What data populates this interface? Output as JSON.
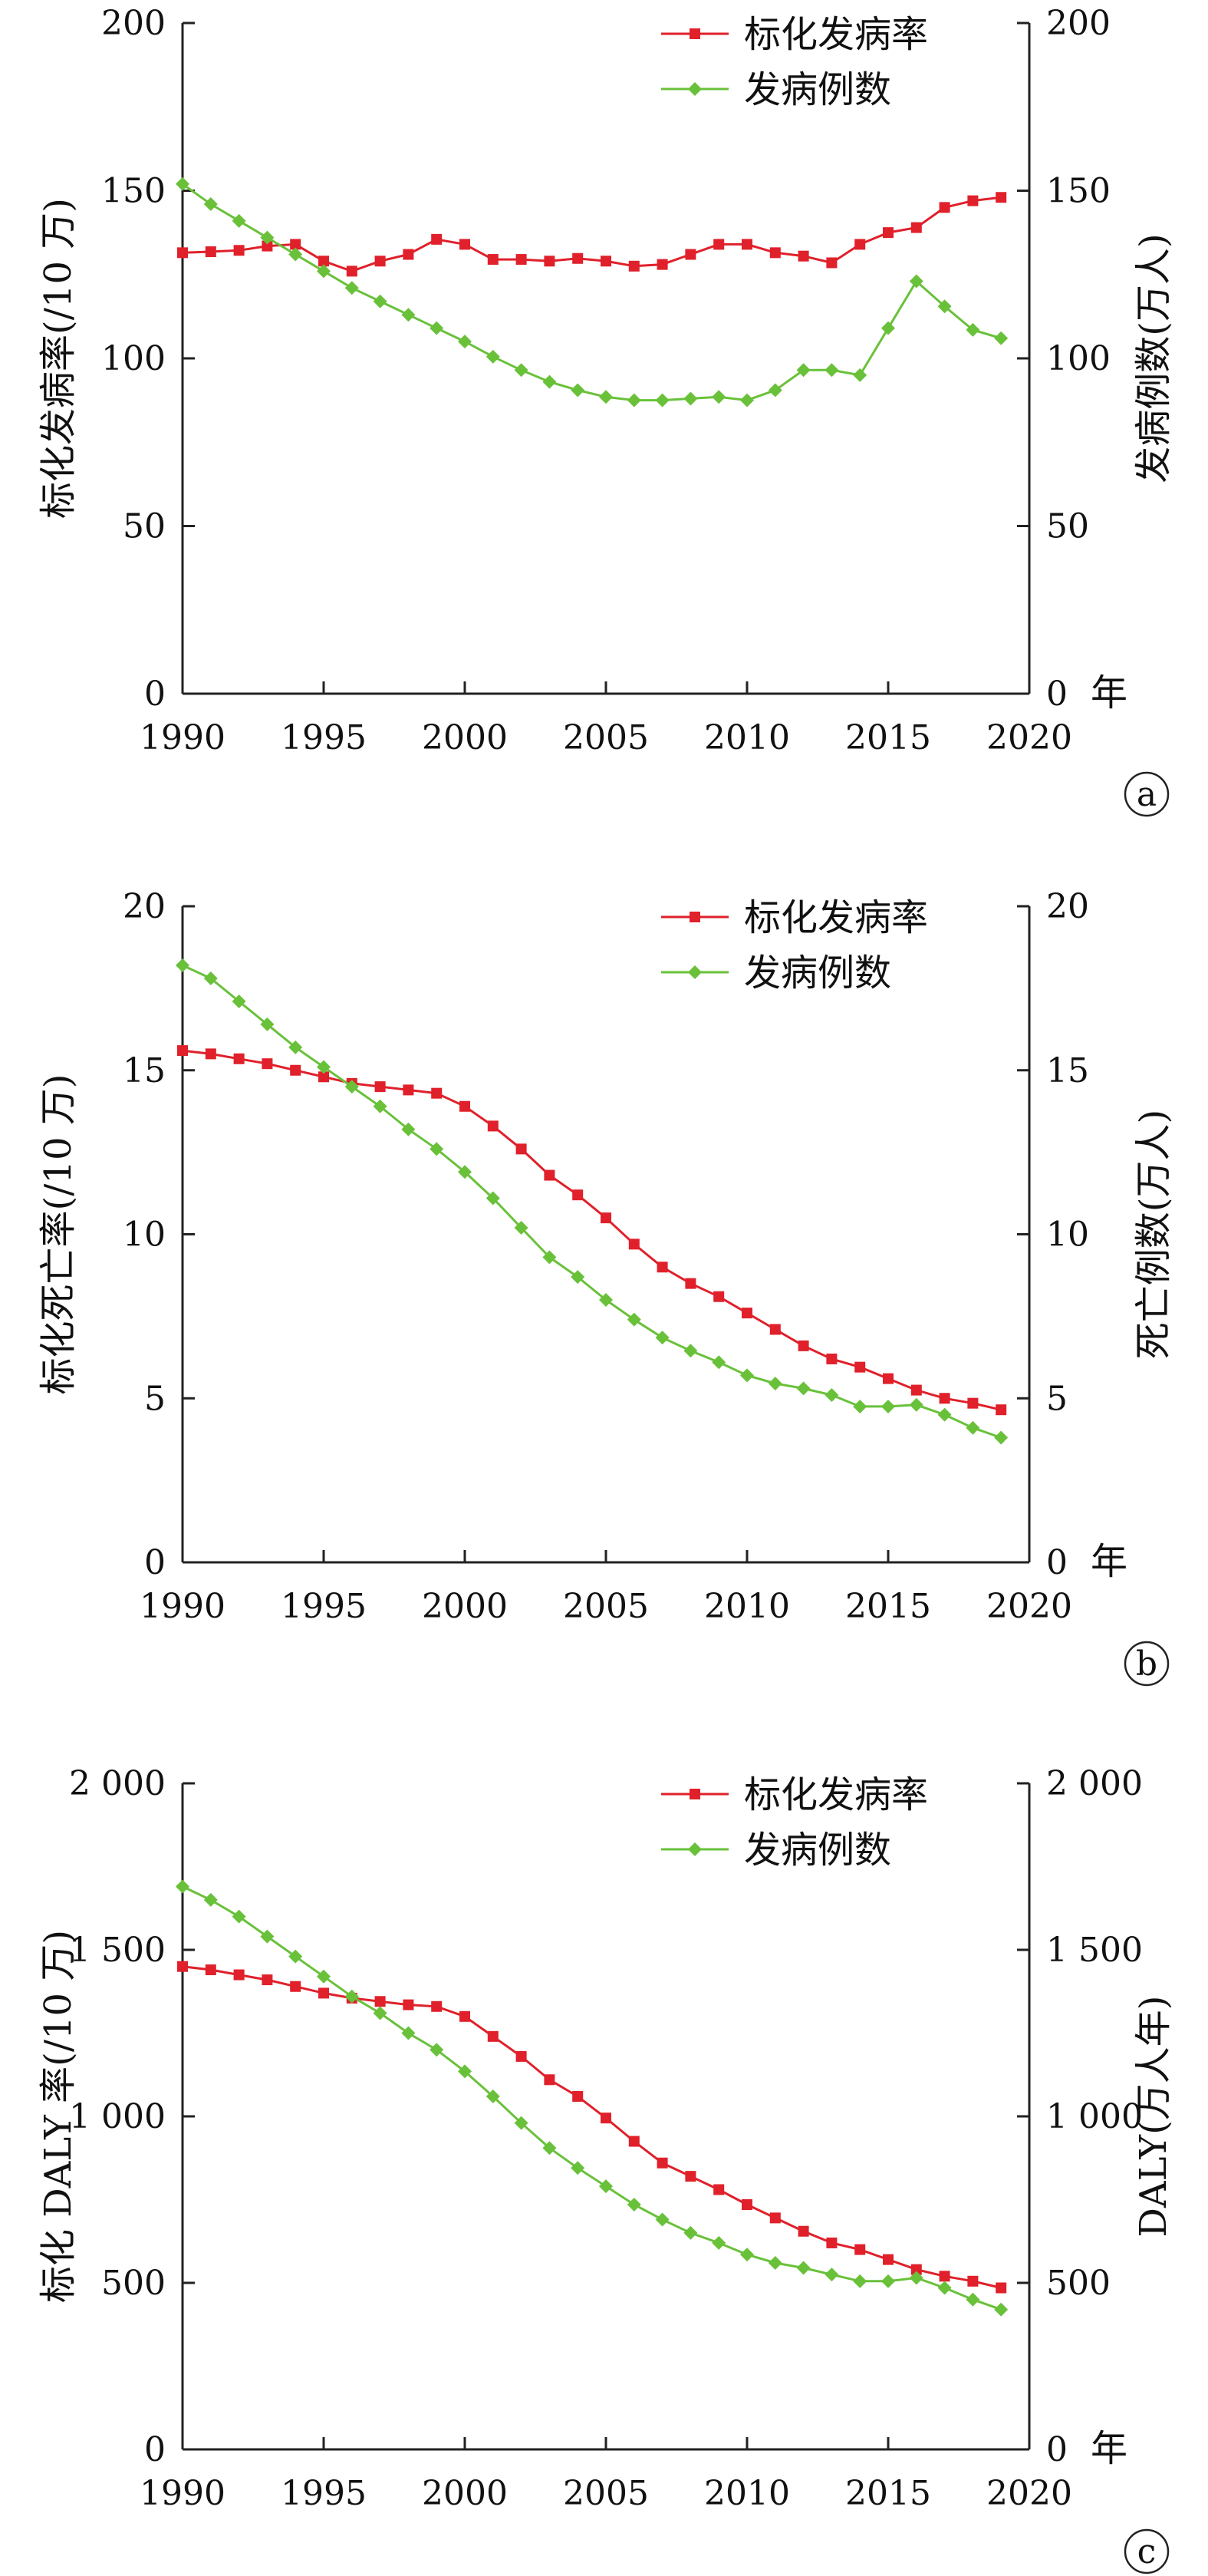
{
  "colors": {
    "rate": "#e0202a",
    "count": "#69c13a",
    "axis": "#222222"
  },
  "chart_data": [
    {
      "type": "line",
      "panel_label": "a",
      "x": [
        1990,
        1991,
        1992,
        1993,
        1994,
        1995,
        1996,
        1997,
        1998,
        1999,
        2000,
        2001,
        2002,
        2003,
        2004,
        2005,
        2006,
        2007,
        2008,
        2009,
        2010,
        2011,
        2012,
        2013,
        2014,
        2015,
        2016,
        2017,
        2018,
        2019
      ],
      "xticks": [
        1990,
        1995,
        2000,
        2005,
        2010,
        2015,
        2020
      ],
      "xlim": [
        1990,
        2020
      ],
      "x_unit": "年",
      "ylim": [
        0,
        200
      ],
      "yticks": [
        0,
        50,
        100,
        150,
        200
      ],
      "ytick_labels": [
        "0",
        "50",
        "100",
        "150",
        "200"
      ],
      "ylabel": "标化发病率(/10 万)",
      "ylabel_right": "发病例数(万人)",
      "series": [
        {
          "name": "标化发病率",
          "marker": "square",
          "values": [
            131.5,
            131.8,
            132.2,
            133.5,
            134.0,
            129.0,
            126.0,
            129.0,
            131.0,
            135.5,
            134.0,
            129.5,
            129.5,
            129.0,
            129.8,
            129.0,
            127.5,
            128.0,
            131.0,
            134.0,
            134.0,
            131.5,
            130.5,
            128.5,
            134.0,
            137.5,
            139.0,
            145.0,
            147.0,
            148.0
          ]
        },
        {
          "name": "发病例数",
          "marker": "diamond",
          "values": [
            152.0,
            146.0,
            141.0,
            136.0,
            131.0,
            126.0,
            121.0,
            117.0,
            113.0,
            109.0,
            105.0,
            100.5,
            96.5,
            93.0,
            90.5,
            88.5,
            87.5,
            87.5,
            88.0,
            88.5,
            87.5,
            90.5,
            96.5,
            96.5,
            95.0,
            109.0,
            123.0,
            115.5,
            108.5,
            106.0
          ]
        }
      ]
    },
    {
      "type": "line",
      "panel_label": "b",
      "x": [
        1990,
        1991,
        1992,
        1993,
        1994,
        1995,
        1996,
        1997,
        1998,
        1999,
        2000,
        2001,
        2002,
        2003,
        2004,
        2005,
        2006,
        2007,
        2008,
        2009,
        2010,
        2011,
        2012,
        2013,
        2014,
        2015,
        2016,
        2017,
        2018,
        2019
      ],
      "xticks": [
        1990,
        1995,
        2000,
        2005,
        2010,
        2015,
        2020
      ],
      "xlim": [
        1990,
        2020
      ],
      "x_unit": "年",
      "ylim": [
        0,
        20
      ],
      "yticks": [
        0,
        5,
        10,
        15,
        20
      ],
      "ytick_labels": [
        "0",
        "5",
        "10",
        "15",
        "20"
      ],
      "ylabel": "标化死亡率(/10 万)",
      "ylabel_right": "死亡例数(万人)",
      "series": [
        {
          "name": "标化发病率",
          "marker": "square",
          "values": [
            15.6,
            15.5,
            15.35,
            15.2,
            15.0,
            14.8,
            14.6,
            14.5,
            14.4,
            14.3,
            13.9,
            13.3,
            12.6,
            11.8,
            11.2,
            10.5,
            9.7,
            9.0,
            8.5,
            8.1,
            7.6,
            7.1,
            6.6,
            6.2,
            5.95,
            5.6,
            5.25,
            5.0,
            4.85,
            4.65
          ]
        },
        {
          "name": "发病例数",
          "marker": "diamond",
          "values": [
            18.2,
            17.8,
            17.1,
            16.4,
            15.7,
            15.1,
            14.5,
            13.9,
            13.2,
            12.6,
            11.9,
            11.1,
            10.2,
            9.3,
            8.7,
            8.0,
            7.4,
            6.85,
            6.45,
            6.1,
            5.7,
            5.45,
            5.3,
            5.1,
            4.75,
            4.75,
            4.8,
            4.5,
            4.1,
            3.8
          ]
        }
      ]
    },
    {
      "type": "line",
      "panel_label": "c",
      "x": [
        1990,
        1991,
        1992,
        1993,
        1994,
        1995,
        1996,
        1997,
        1998,
        1999,
        2000,
        2001,
        2002,
        2003,
        2004,
        2005,
        2006,
        2007,
        2008,
        2009,
        2010,
        2011,
        2012,
        2013,
        2014,
        2015,
        2016,
        2017,
        2018,
        2019
      ],
      "xticks": [
        1990,
        1995,
        2000,
        2005,
        2010,
        2015,
        2020
      ],
      "xlim": [
        1990,
        2020
      ],
      "x_unit": "年",
      "ylim": [
        0,
        2000
      ],
      "yticks": [
        0,
        500,
        1000,
        1500,
        2000
      ],
      "ytick_labels": [
        "0",
        "500",
        "1 000",
        "1 500",
        "2 000"
      ],
      "ylabel": "标化 DALY 率(/10 万)",
      "ylabel_right": "DALY(万人年)",
      "series": [
        {
          "name": "标化发病率",
          "marker": "square",
          "values": [
            1450,
            1440,
            1425,
            1410,
            1390,
            1370,
            1355,
            1345,
            1335,
            1330,
            1300,
            1240,
            1180,
            1110,
            1060,
            995,
            925,
            860,
            820,
            780,
            735,
            695,
            655,
            620,
            600,
            570,
            540,
            520,
            505,
            485
          ]
        },
        {
          "name": "发病例数",
          "marker": "diamond",
          "values": [
            1690,
            1650,
            1600,
            1540,
            1480,
            1420,
            1360,
            1310,
            1250,
            1200,
            1135,
            1060,
            980,
            905,
            845,
            790,
            735,
            690,
            650,
            620,
            585,
            560,
            545,
            525,
            505,
            505,
            515,
            485,
            450,
            420
          ]
        }
      ]
    }
  ]
}
